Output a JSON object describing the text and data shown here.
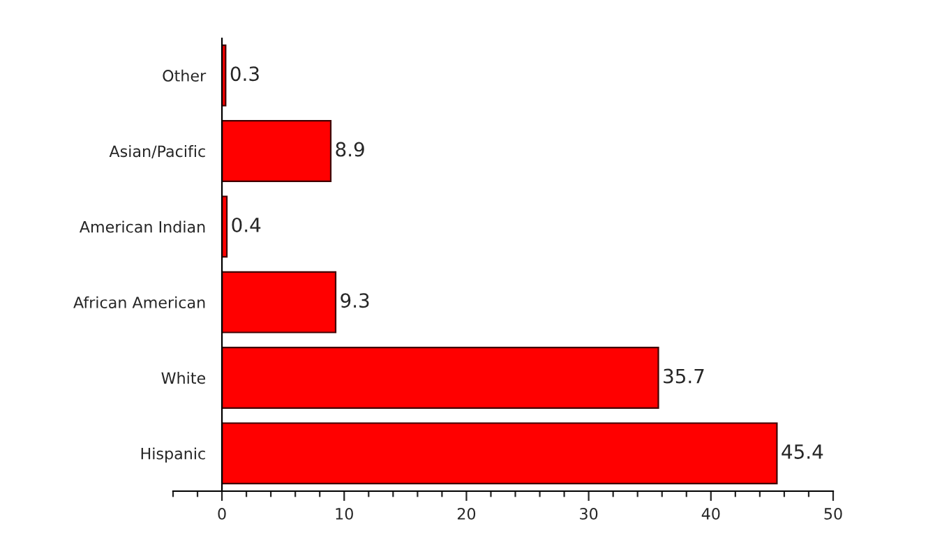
{
  "chart_data": {
    "type": "bar",
    "orientation": "horizontal",
    "categories": [
      "Other",
      "Asian/Pacific",
      "American Indian",
      "African American",
      "White",
      "Hispanic"
    ],
    "values": [
      0.3,
      8.9,
      0.4,
      9.3,
      35.7,
      45.4
    ],
    "color": "#ff0000",
    "data_labels": true,
    "xlim": [
      -4,
      50
    ],
    "xticks": [
      {
        "value": -4,
        "label": null
      },
      {
        "value": -2,
        "label": null
      },
      0,
      {
        "value": 2,
        "label": null
      },
      {
        "value": 4,
        "label": null
      },
      {
        "value": 6,
        "label": null
      },
      {
        "value": 8,
        "label": null
      },
      10,
      {
        "value": 12,
        "label": null
      },
      {
        "value": 14,
        "label": null
      },
      {
        "value": 16,
        "label": null
      },
      {
        "value": 18,
        "label": null
      },
      20,
      {
        "value": 22,
        "label": null
      },
      {
        "value": 24,
        "label": null
      },
      {
        "value": 26,
        "label": null
      },
      {
        "value": 28,
        "label": null
      },
      30,
      {
        "value": 32,
        "label": null
      },
      {
        "value": 34,
        "label": null
      },
      {
        "value": 36,
        "label": null
      },
      {
        "value": 38,
        "label": null
      },
      40,
      {
        "value": 42,
        "label": null
      },
      {
        "value": 44,
        "label": null
      },
      {
        "value": 46,
        "label": null
      },
      {
        "value": 48,
        "label": null
      },
      50
    ]
  }
}
